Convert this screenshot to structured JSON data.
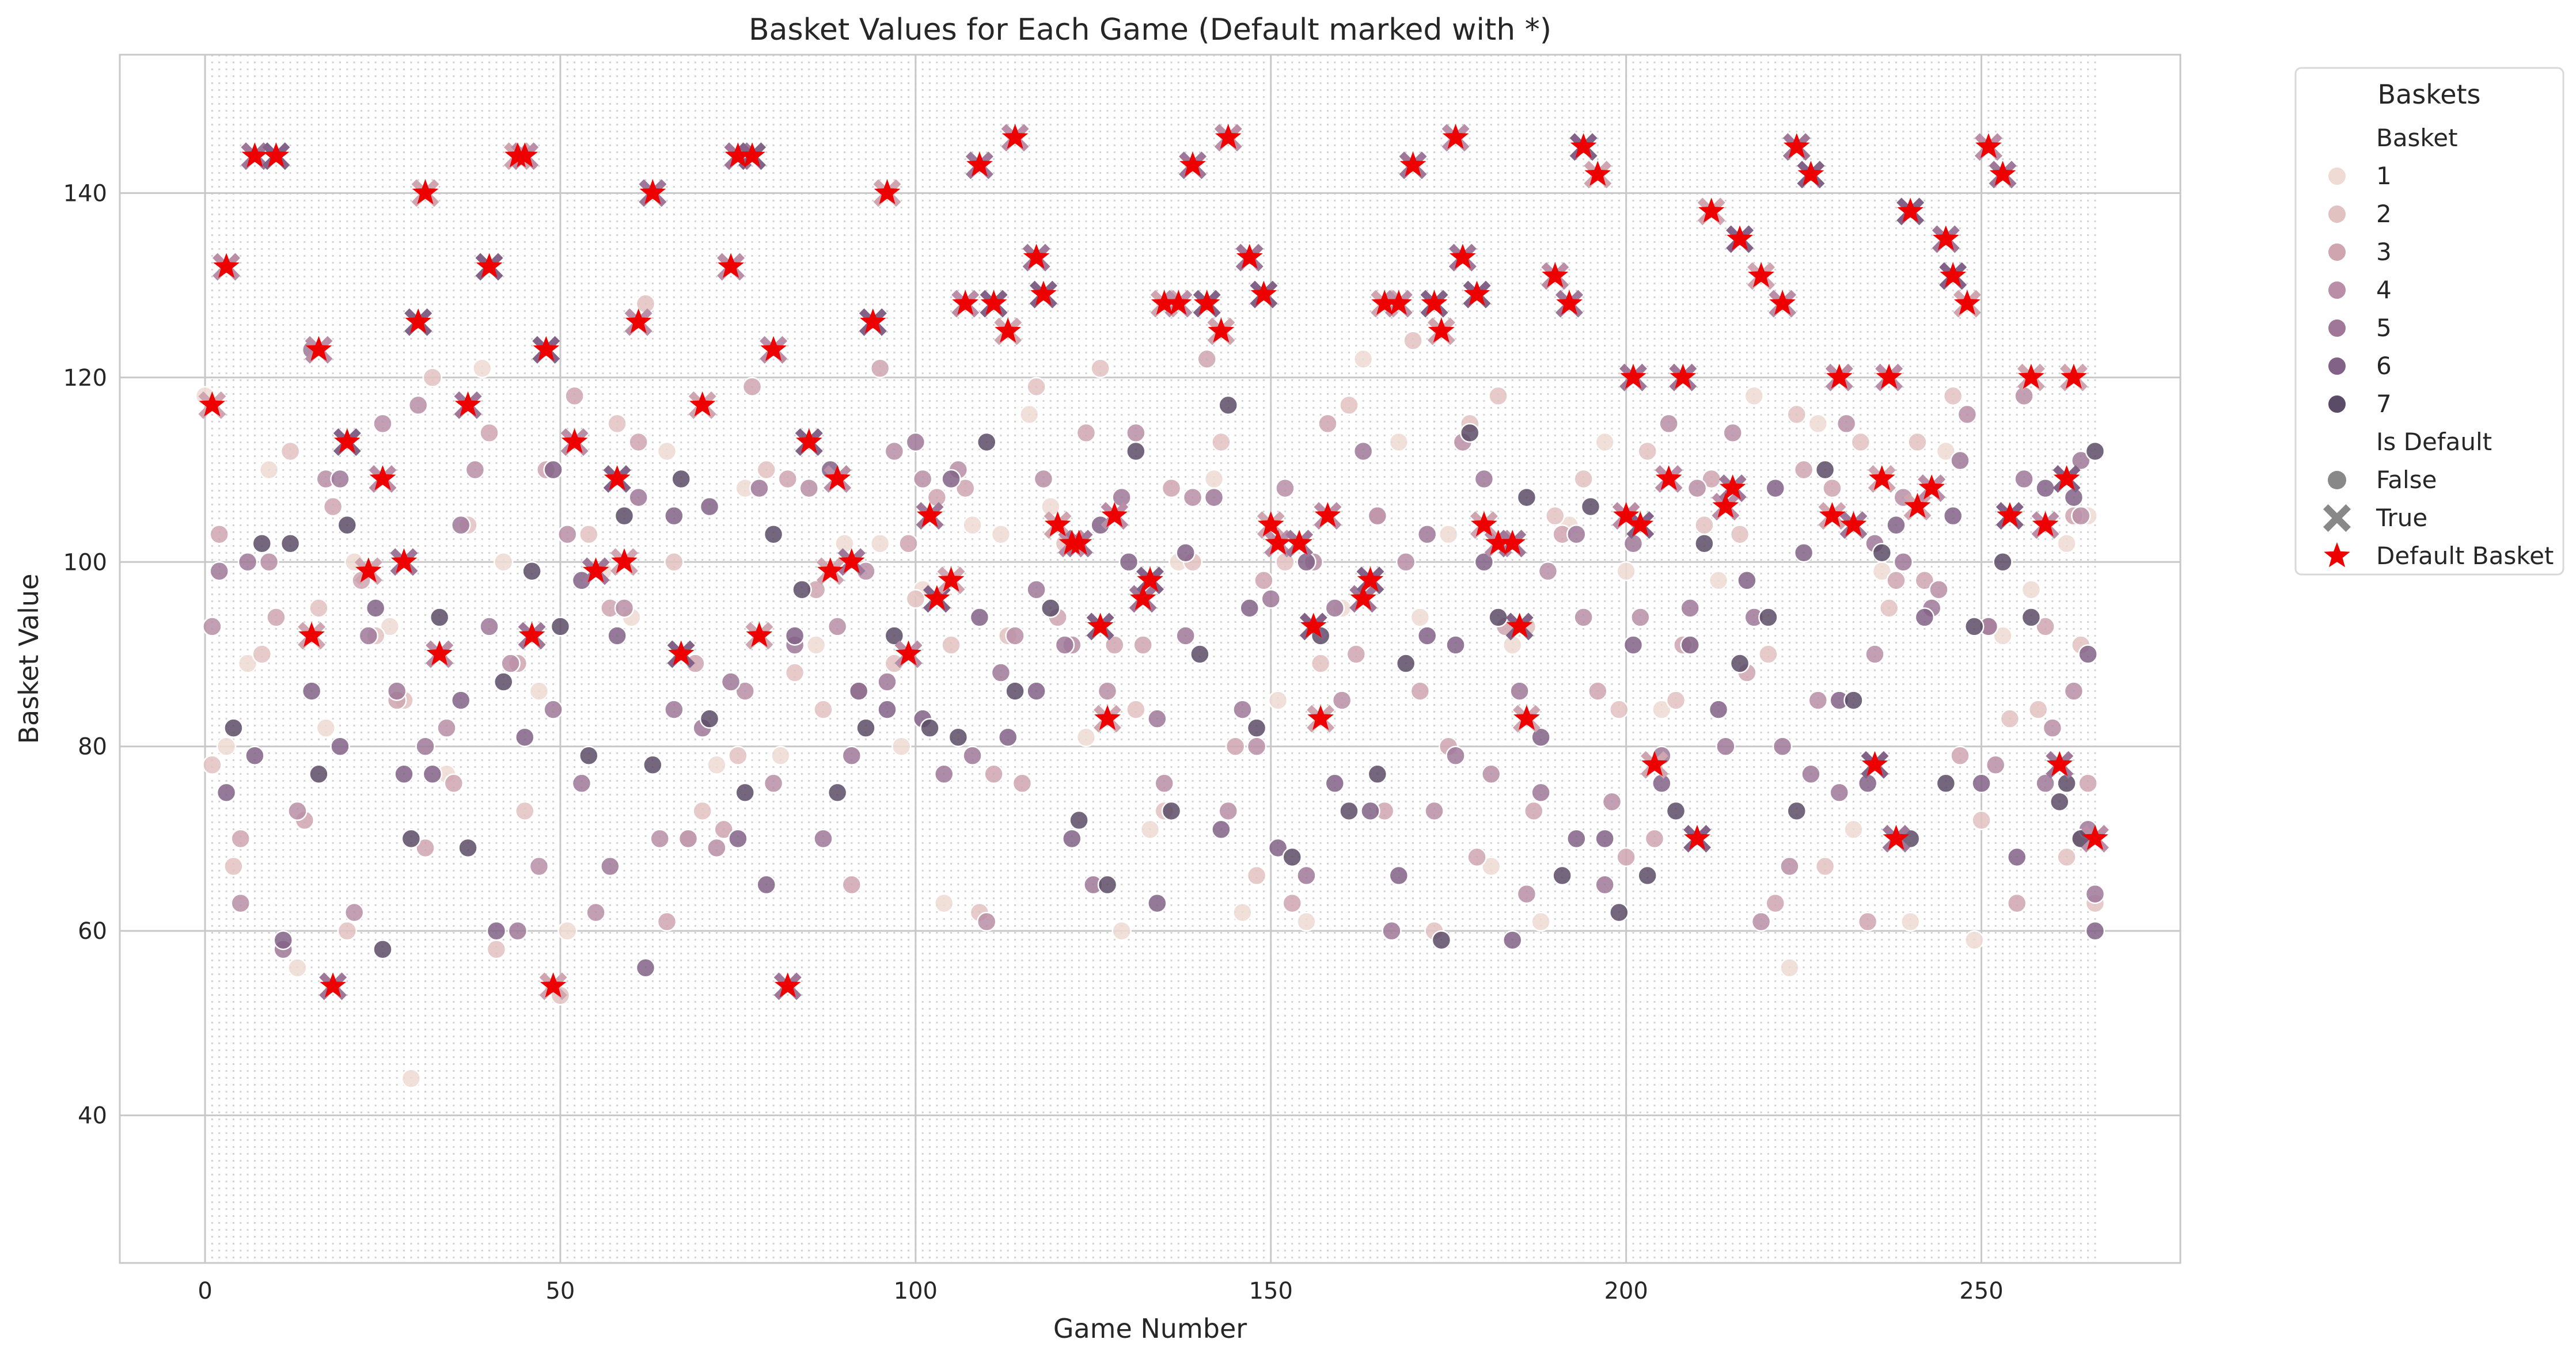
{
  "chart_data": {
    "type": "scatter",
    "title": "Basket Values for Each Game (Default marked with *)",
    "xlabel": "Game Number",
    "ylabel": "Basket Value",
    "xlim": [
      -12,
      278
    ],
    "ylim": [
      24,
      155
    ],
    "xticks": [
      0,
      50,
      100,
      150,
      200,
      250
    ],
    "yticks": [
      40,
      60,
      80,
      100,
      120,
      140
    ],
    "grid": true,
    "legend": {
      "title": "Baskets",
      "hue_title": "Basket",
      "hue_entries": [
        {
          "label": "1",
          "color": "#efdbd3"
        },
        {
          "label": "2",
          "color": "#e2c2c1"
        },
        {
          "label": "3",
          "color": "#cfa6b0"
        },
        {
          "label": "4",
          "color": "#b98ea6"
        },
        {
          "label": "5",
          "color": "#9f7899"
        },
        {
          "label": "6",
          "color": "#836287"
        },
        {
          "label": "7",
          "color": "#5a4b66"
        }
      ],
      "style_title": "Is Default",
      "style_entries": [
        {
          "label": "False",
          "marker": "circle"
        },
        {
          "label": "True",
          "marker": "x"
        }
      ],
      "default_entry": {
        "label": "Default Basket",
        "marker": "star",
        "color": "#ee0000"
      },
      "placement": "outside-upper-right"
    },
    "default_baskets": {
      "series_name": "Default Basket",
      "x": [
        1,
        3,
        7,
        10,
        15,
        16,
        18,
        20,
        23,
        25,
        28,
        30,
        31,
        33,
        37,
        40,
        44,
        45,
        46,
        48,
        49,
        52,
        55,
        58,
        59,
        61,
        63,
        67,
        70,
        74,
        75,
        77,
        78,
        80,
        82,
        85,
        88,
        89,
        91,
        94,
        96,
        99,
        102,
        103,
        105,
        107,
        109,
        111,
        113,
        114,
        117,
        118,
        120,
        122,
        123,
        126,
        127,
        128,
        132,
        133,
        135,
        137,
        139,
        141,
        143,
        144,
        147,
        149,
        150,
        151,
        154,
        156,
        157,
        158,
        163,
        164,
        166,
        168,
        170,
        173,
        174,
        176,
        177,
        179,
        180,
        182,
        184,
        185,
        186,
        190,
        192,
        194,
        196,
        200,
        201,
        202,
        204,
        206,
        208,
        210,
        212,
        214,
        215,
        216,
        219,
        222,
        224,
        226,
        229,
        230,
        232,
        235,
        236,
        237,
        238,
        240,
        241,
        243,
        245,
        246,
        248,
        251,
        253,
        254,
        257,
        259,
        261,
        262,
        263,
        266
      ],
      "y": [
        117,
        132,
        144,
        144,
        92,
        123,
        54,
        113,
        99,
        109,
        100,
        126,
        140,
        90,
        117,
        132,
        144,
        144,
        92,
        123,
        54,
        113,
        99,
        109,
        100,
        126,
        140,
        90,
        117,
        132,
        144,
        144,
        92,
        123,
        54,
        113,
        99,
        109,
        100,
        126,
        140,
        90,
        105,
        96,
        98,
        128,
        143,
        128,
        125,
        146,
        133,
        129,
        104,
        102,
        102,
        93,
        83,
        105,
        96,
        98,
        128,
        128,
        143,
        128,
        125,
        146,
        133,
        129,
        104,
        102,
        102,
        93,
        83,
        105,
        96,
        98,
        128,
        128,
        143,
        128,
        125,
        146,
        133,
        129,
        104,
        102,
        102,
        93,
        83,
        131,
        128,
        145,
        142,
        105,
        120,
        104,
        78,
        109,
        120,
        70,
        138,
        106,
        108,
        135,
        131,
        128,
        145,
        142,
        105,
        120,
        104,
        78,
        109,
        120,
        70,
        138,
        106,
        108,
        135,
        131,
        128,
        145,
        142,
        105,
        120,
        104,
        78,
        109,
        120,
        70
      ]
    },
    "series": [
      {
        "name": "1",
        "x": [
          0,
          3,
          6,
          9,
          13,
          17,
          21,
          26,
          29,
          34,
          39,
          42,
          47,
          51,
          56,
          60,
          65,
          68,
          72,
          76,
          81,
          86,
          90,
          95,
          98,
          101,
          104,
          108,
          112,
          116,
          119,
          124,
          129,
          133,
          137,
          142,
          146,
          151,
          155,
          160,
          163,
          168,
          171,
          175,
          181,
          184,
          188,
          192,
          197,
          200,
          205,
          209,
          213,
          218,
          223,
          227,
          232,
          236,
          240,
          245,
          249,
          253,
          257,
          262,
          265
        ],
        "y": [
          118,
          80,
          89,
          110,
          56,
          82,
          100,
          93,
          44,
          77,
          121,
          100,
          86,
          60,
          99,
          94,
          112,
          70,
          78,
          108,
          79,
          91,
          102,
          102,
          80,
          97,
          63,
          104,
          103,
          116,
          106,
          81,
          60,
          71,
          100,
          109,
          62,
          85,
          61,
          95,
          122,
          113,
          94,
          103,
          67,
          91,
          61,
          104,
          113,
          99,
          84,
          91,
          98,
          118,
          56,
          115,
          71,
          99,
          61,
          112,
          59,
          92,
          97,
          102,
          105
        ]
      },
      {
        "name": "2",
        "x": [
          1,
          4,
          8,
          12,
          16,
          20,
          24,
          28,
          32,
          37,
          41,
          45,
          50,
          54,
          58,
          62,
          66,
          70,
          75,
          79,
          83,
          87,
          92,
          97,
          100,
          105,
          109,
          113,
          117,
          121,
          126,
          131,
          135,
          139,
          143,
          148,
          152,
          157,
          161,
          165,
          170,
          173,
          178,
          182,
          186,
          190,
          194,
          199,
          203,
          207,
          211,
          216,
          220,
          224,
          228,
          233,
          237,
          241,
          246,
          250,
          254,
          258,
          262,
          264,
          266
        ],
        "y": [
          78,
          67,
          90,
          112,
          95,
          60,
          92,
          85,
          120,
          104,
          58,
          73,
          53,
          103,
          115,
          128,
          100,
          73,
          79,
          110,
          88,
          84,
          86,
          89,
          96,
          91,
          62,
          92,
          119,
          102,
          121,
          84,
          73,
          100,
          113,
          66,
          100,
          89,
          117,
          105,
          124,
          60,
          115,
          118,
          93,
          105,
          109,
          84,
          112,
          85,
          104,
          103,
          90,
          116,
          67,
          113,
          95,
          113,
          118,
          72,
          83,
          84,
          68,
          91,
          63
        ]
      },
      {
        "name": "3",
        "x": [
          2,
          5,
          10,
          14,
          18,
          22,
          27,
          31,
          35,
          40,
          44,
          48,
          52,
          57,
          61,
          65,
          69,
          73,
          77,
          82,
          86,
          91,
          95,
          99,
          103,
          107,
          111,
          115,
          120,
          124,
          128,
          132,
          136,
          141,
          145,
          149,
          153,
          158,
          162,
          166,
          171,
          175,
          179,
          183,
          187,
          191,
          196,
          200,
          204,
          208,
          212,
          217,
          221,
          225,
          229,
          234,
          238,
          242,
          247,
          251,
          255,
          259,
          263,
          265,
          264
        ],
        "y": [
          103,
          70,
          94,
          72,
          106,
          98,
          85,
          69,
          76,
          114,
          89,
          110,
          118,
          95,
          113,
          61,
          89,
          71,
          119,
          109,
          97,
          65,
          121,
          102,
          107,
          108,
          77,
          76,
          94,
          114,
          91,
          91,
          108,
          122,
          80,
          98,
          63,
          115,
          90,
          73,
          86,
          80,
          68,
          93,
          73,
          103,
          86,
          68,
          70,
          91,
          109,
          88,
          63,
          110,
          108,
          61,
          98,
          98,
          79,
          93,
          63,
          93,
          105,
          76,
          70
        ]
      },
      {
        "name": "4",
        "x": [
          1,
          5,
          9,
          13,
          17,
          21,
          25,
          30,
          34,
          38,
          43,
          47,
          51,
          55,
          59,
          64,
          68,
          72,
          76,
          80,
          85,
          89,
          93,
          97,
          101,
          106,
          110,
          114,
          118,
          122,
          127,
          131,
          135,
          139,
          144,
          148,
          152,
          156,
          160,
          165,
          169,
          173,
          177,
          181,
          186,
          189,
          194,
          198,
          202,
          206,
          210,
          215,
          219,
          223,
          227,
          231,
          235,
          239,
          244,
          248,
          252,
          256,
          260,
          264,
          263
        ],
        "y": [
          93,
          63,
          100,
          73,
          109,
          62,
          115,
          117,
          82,
          110,
          89,
          67,
          103,
          62,
          95,
          70,
          70,
          69,
          86,
          76,
          108,
          93,
          99,
          112,
          109,
          110,
          61,
          92,
          109,
          91,
          86,
          114,
          76,
          107,
          73,
          80,
          108,
          100,
          85,
          105,
          100,
          73,
          113,
          77,
          64,
          99,
          94,
          74,
          94,
          115,
          108,
          114,
          61,
          67,
          85,
          115,
          90,
          107,
          97,
          116,
          78,
          118,
          82,
          105,
          86
        ]
      },
      {
        "name": "5",
        "x": [
          2,
          6,
          11,
          15,
          19,
          23,
          27,
          31,
          36,
          40,
          44,
          49,
          53,
          57,
          61,
          66,
          70,
          74,
          78,
          83,
          87,
          91,
          96,
          100,
          104,
          108,
          112,
          117,
          121,
          125,
          129,
          134,
          138,
          142,
          146,
          150,
          155,
          159,
          163,
          167,
          172,
          176,
          180,
          185,
          188,
          193,
          197,
          201,
          205,
          209,
          214,
          218,
          222,
          226,
          230,
          235,
          239,
          243,
          247,
          251,
          256,
          259,
          264,
          266,
          265
        ],
        "y": [
          99,
          100,
          58,
          123,
          109,
          92,
          86,
          80,
          104,
          93,
          60,
          84,
          76,
          67,
          107,
          84,
          82,
          87,
          108,
          91,
          70,
          79,
          87,
          113,
          77,
          79,
          88,
          97,
          91,
          65,
          107,
          83,
          92,
          107,
          84,
          96,
          66,
          95,
          112,
          60,
          103,
          79,
          109,
          86,
          75,
          103,
          65,
          102,
          79,
          95,
          80,
          94,
          80,
          77,
          75,
          102,
          100,
          95,
          111,
          93,
          109,
          76,
          111,
          64,
          71
        ]
      },
      {
        "name": "6",
        "x": [
          3,
          7,
          11,
          15,
          19,
          24,
          28,
          32,
          36,
          41,
          45,
          49,
          53,
          58,
          62,
          66,
          71,
          75,
          79,
          83,
          88,
          92,
          96,
          101,
          105,
          109,
          113,
          117,
          122,
          126,
          130,
          134,
          138,
          143,
          147,
          151,
          155,
          159,
          164,
          168,
          172,
          176,
          180,
          184,
          188,
          193,
          197,
          201,
          205,
          209,
          213,
          217,
          221,
          225,
          230,
          234,
          238,
          242,
          246,
          250,
          255,
          259,
          263,
          265,
          266
        ],
        "y": [
          75,
          79,
          59,
          86,
          80,
          95,
          77,
          77,
          85,
          60,
          81,
          110,
          98,
          92,
          56,
          105,
          106,
          70,
          65,
          92,
          110,
          86,
          84,
          83,
          109,
          94,
          81,
          86,
          70,
          104,
          100,
          63,
          101,
          71,
          95,
          69,
          100,
          76,
          73,
          66,
          92,
          91,
          100,
          59,
          81,
          70,
          70,
          91,
          76,
          91,
          84,
          98,
          108,
          101,
          85,
          76,
          104,
          94,
          105,
          76,
          68,
          108,
          107,
          90,
          60
        ]
      },
      {
        "name": "7",
        "x": [
          4,
          8,
          12,
          16,
          20,
          25,
          29,
          33,
          37,
          42,
          46,
          50,
          54,
          59,
          63,
          67,
          71,
          76,
          80,
          84,
          89,
          93,
          97,
          102,
          106,
          110,
          114,
          119,
          123,
          127,
          131,
          136,
          140,
          144,
          148,
          153,
          157,
          161,
          165,
          169,
          174,
          178,
          182,
          186,
          191,
          195,
          199,
          203,
          207,
          211,
          216,
          220,
          224,
          228,
          232,
          236,
          240,
          245,
          249,
          253,
          257,
          261,
          264,
          266,
          262
        ],
        "y": [
          82,
          102,
          102,
          77,
          104,
          58,
          70,
          94,
          69,
          87,
          99,
          93,
          79,
          105,
          78,
          109,
          83,
          75,
          103,
          97,
          75,
          82,
          92,
          82,
          81,
          113,
          86,
          95,
          72,
          65,
          112,
          73,
          90,
          117,
          82,
          68,
          92,
          73,
          77,
          89,
          59,
          114,
          94,
          107,
          66,
          106,
          62,
          66,
          73,
          102,
          89,
          94,
          73,
          110,
          85,
          101,
          70,
          76,
          93,
          100,
          94,
          74,
          70,
          112,
          76
        ]
      }
    ]
  }
}
